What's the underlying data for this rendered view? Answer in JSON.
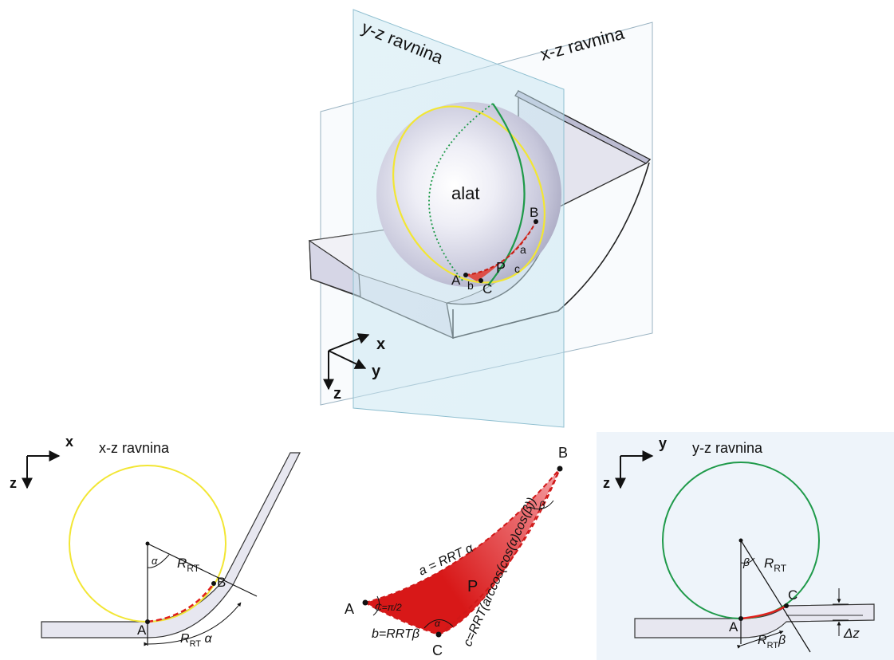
{
  "top": {
    "yz_plane_label": "y-z ravnina",
    "xz_plane_label": "x-z ravnina",
    "tool_label": "alat",
    "point_a": "A",
    "point_b": "B",
    "point_c": "C",
    "point_p": "P",
    "side_a": "a",
    "side_b": "b",
    "side_c": "c",
    "axis_x": "x",
    "axis_y": "y",
    "axis_z": "z"
  },
  "xz_view": {
    "title": "x-z ravnina",
    "axis_x": "x",
    "axis_z": "z",
    "point_a": "A",
    "point_b": "B",
    "alpha": "α",
    "radius_main": "R",
    "radius_sub": "RT",
    "arc_main": "R",
    "arc_sub": "RT",
    "arc_tail": " α"
  },
  "triangle": {
    "point_a": "A",
    "point_b": "B",
    "point_c": "C",
    "region_p": "P",
    "angle_c": "C=π/2",
    "angle_beta": "β",
    "angle_alpha": "α",
    "side_a_text": "a = RRT α",
    "side_b_text": "b=RRTβ",
    "side_c_text": "c=RRT(arccos(cos(α)cos(β))"
  },
  "yz_view": {
    "title": "y-z ravnina",
    "axis_y": "y",
    "axis_z": "z",
    "point_a": "A",
    "point_c": "C",
    "beta": "β",
    "radius_main": "R",
    "radius_sub": "RT",
    "arc_main": "R",
    "arc_sub": "RT",
    "arc_tail": "β",
    "delta_z": "Δz"
  },
  "colors": {
    "xz_circle": "#f2e634",
    "yz_circle": "#1f9a4a",
    "path_red": "#e0201c",
    "plane_fill": "#cfe9f3",
    "sheet_fill": "#e3e3ee",
    "panel_bg": "#eef4fa"
  }
}
